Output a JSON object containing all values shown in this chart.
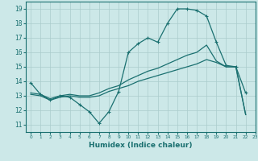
{
  "xlabel": "Humidex (Indice chaleur)",
  "xlim": [
    -0.5,
    23
  ],
  "ylim": [
    10.5,
    19.5
  ],
  "yticks": [
    11,
    12,
    13,
    14,
    15,
    16,
    17,
    18,
    19
  ],
  "xticks": [
    0,
    1,
    2,
    3,
    4,
    5,
    6,
    7,
    8,
    9,
    10,
    11,
    12,
    13,
    14,
    15,
    16,
    17,
    18,
    19,
    20,
    21,
    22,
    23
  ],
  "bg_color": "#cce8e8",
  "grid_color": "#aacccc",
  "line_color": "#1a7070",
  "curve1_x": [
    0,
    1,
    2,
    3,
    4,
    5,
    6,
    7,
    8,
    9,
    10,
    11,
    12,
    13,
    14,
    15,
    16,
    17,
    18,
    19,
    20,
    21,
    22
  ],
  "curve1_y": [
    13.9,
    13.1,
    12.7,
    13.0,
    12.9,
    12.4,
    11.9,
    11.1,
    11.9,
    13.3,
    16.0,
    16.6,
    17.0,
    16.7,
    18.0,
    19.0,
    19.0,
    18.9,
    18.5,
    16.7,
    15.1,
    15.0,
    13.2
  ],
  "curve2_x": [
    0,
    1,
    2,
    3,
    4,
    5,
    6,
    7,
    8,
    9,
    10,
    11,
    12,
    13,
    14,
    15,
    16,
    17,
    18,
    19,
    20,
    21,
    22
  ],
  "curve2_y": [
    13.2,
    13.1,
    12.8,
    13.0,
    13.1,
    13.0,
    13.0,
    13.2,
    13.5,
    13.7,
    14.1,
    14.4,
    14.7,
    14.9,
    15.2,
    15.5,
    15.8,
    16.0,
    16.5,
    15.4,
    15.0,
    15.0,
    11.7
  ],
  "curve3_x": [
    0,
    1,
    2,
    3,
    4,
    5,
    6,
    7,
    8,
    9,
    10,
    11,
    12,
    13,
    14,
    15,
    16,
    17,
    18,
    19,
    20,
    21,
    22
  ],
  "curve3_y": [
    13.1,
    13.0,
    12.7,
    12.9,
    13.0,
    12.9,
    12.9,
    13.0,
    13.3,
    13.5,
    13.7,
    14.0,
    14.2,
    14.4,
    14.6,
    14.8,
    15.0,
    15.2,
    15.5,
    15.3,
    15.0,
    15.0,
    11.7
  ]
}
